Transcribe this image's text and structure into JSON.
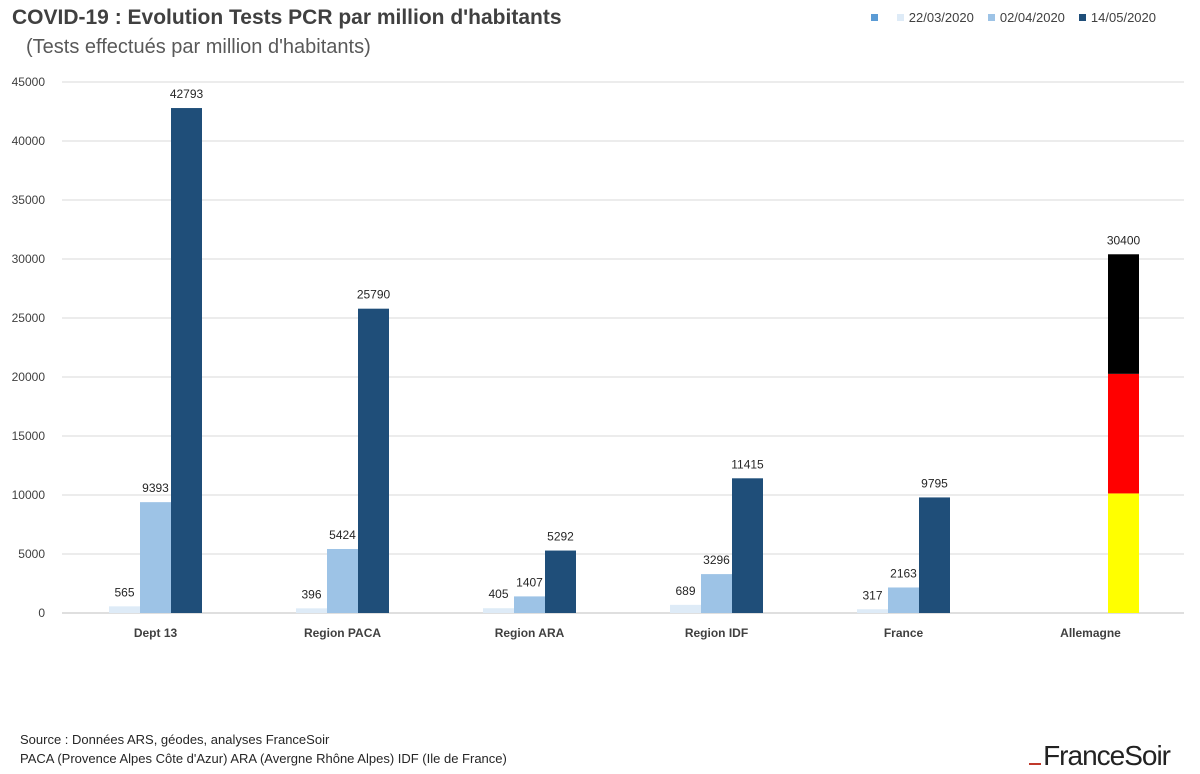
{
  "title": "COVID-19 : Evolution Tests PCR par million d'habitants",
  "subtitle": "(Tests effectués par million d'habitants)",
  "source_lines": [
    "Source : Données ARS, géodes, analyses FranceSoir",
    "PACA (Provence Alpes Côte d'Azur) ARA (Avergne Rhône Alpes) IDF (Ile de France)"
  ],
  "logo_text": "FranceSoir",
  "legend": [
    {
      "name": "",
      "color": "#5b9bd5"
    },
    {
      "name": "22/03/2020",
      "color": "#deebf7"
    },
    {
      "name": "02/04/2020",
      "color": "#9dc3e6"
    },
    {
      "name": "14/05/2020",
      "color": "#1f4e79"
    }
  ],
  "chart_data": {
    "type": "bar",
    "categories": [
      "Dept 13",
      "Region PACA",
      "Region ARA",
      "Region IDF",
      "France",
      "Allemagne"
    ],
    "series": [
      {
        "name": "22/03/2020",
        "color": "#deebf7",
        "values": [
          565,
          396,
          405,
          689,
          317,
          null
        ]
      },
      {
        "name": "02/04/2020",
        "color": "#9dc3e6",
        "values": [
          9393,
          5424,
          1407,
          3296,
          2163,
          null
        ]
      },
      {
        "name": "14/05/2020",
        "color": "#1f4e79",
        "values": [
          42793,
          25790,
          5292,
          11415,
          9795,
          null
        ]
      }
    ],
    "special_bar": {
      "category": "Allemagne",
      "value": 30400,
      "flag_colors": [
        "#ffff00",
        "#ff0000",
        "#000000"
      ]
    },
    "ylim": [
      0,
      45000
    ],
    "yticks": [
      0,
      5000,
      10000,
      15000,
      20000,
      25000,
      30000,
      35000,
      40000,
      45000
    ],
    "grid": true,
    "legend_position": "top-right"
  }
}
